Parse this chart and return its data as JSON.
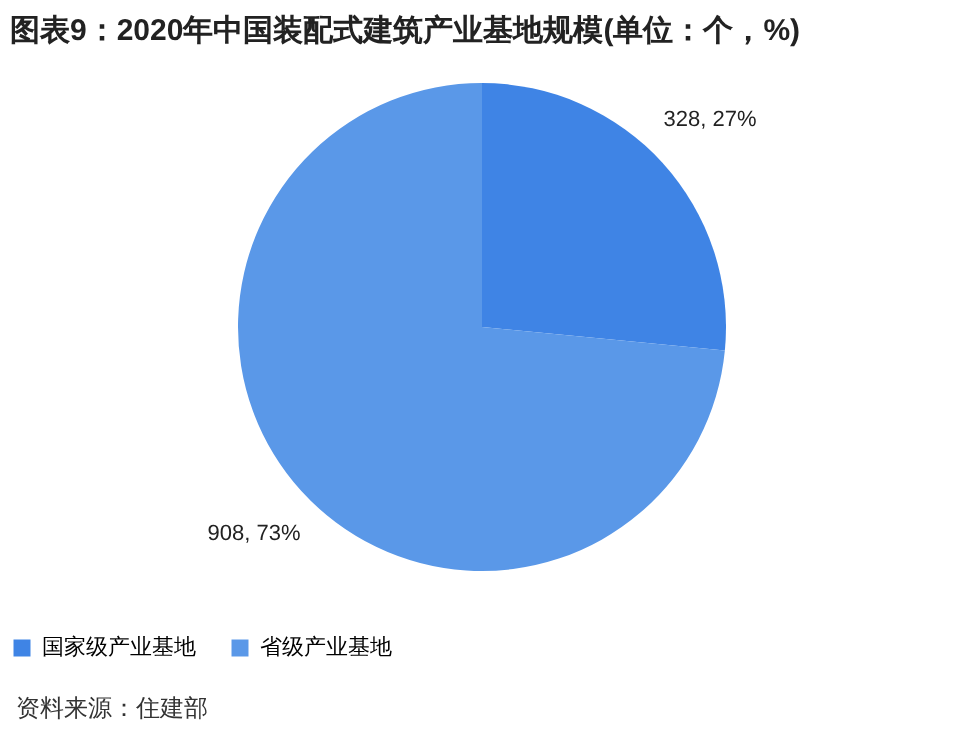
{
  "chart_data": {
    "type": "pie",
    "title": "图表9：2020年中国装配式建筑产业基地规模(单位：个，%)",
    "categories": [
      "国家级产业基地",
      "省级产业基地"
    ],
    "values": [
      328,
      908
    ],
    "colors": [
      "#3f84e5",
      "#5a98e8"
    ],
    "value_labels": [
      "328, 27%",
      "908, 73%"
    ],
    "legend": "bottom",
    "annotations": [
      "资料来源：住建部"
    ]
  }
}
